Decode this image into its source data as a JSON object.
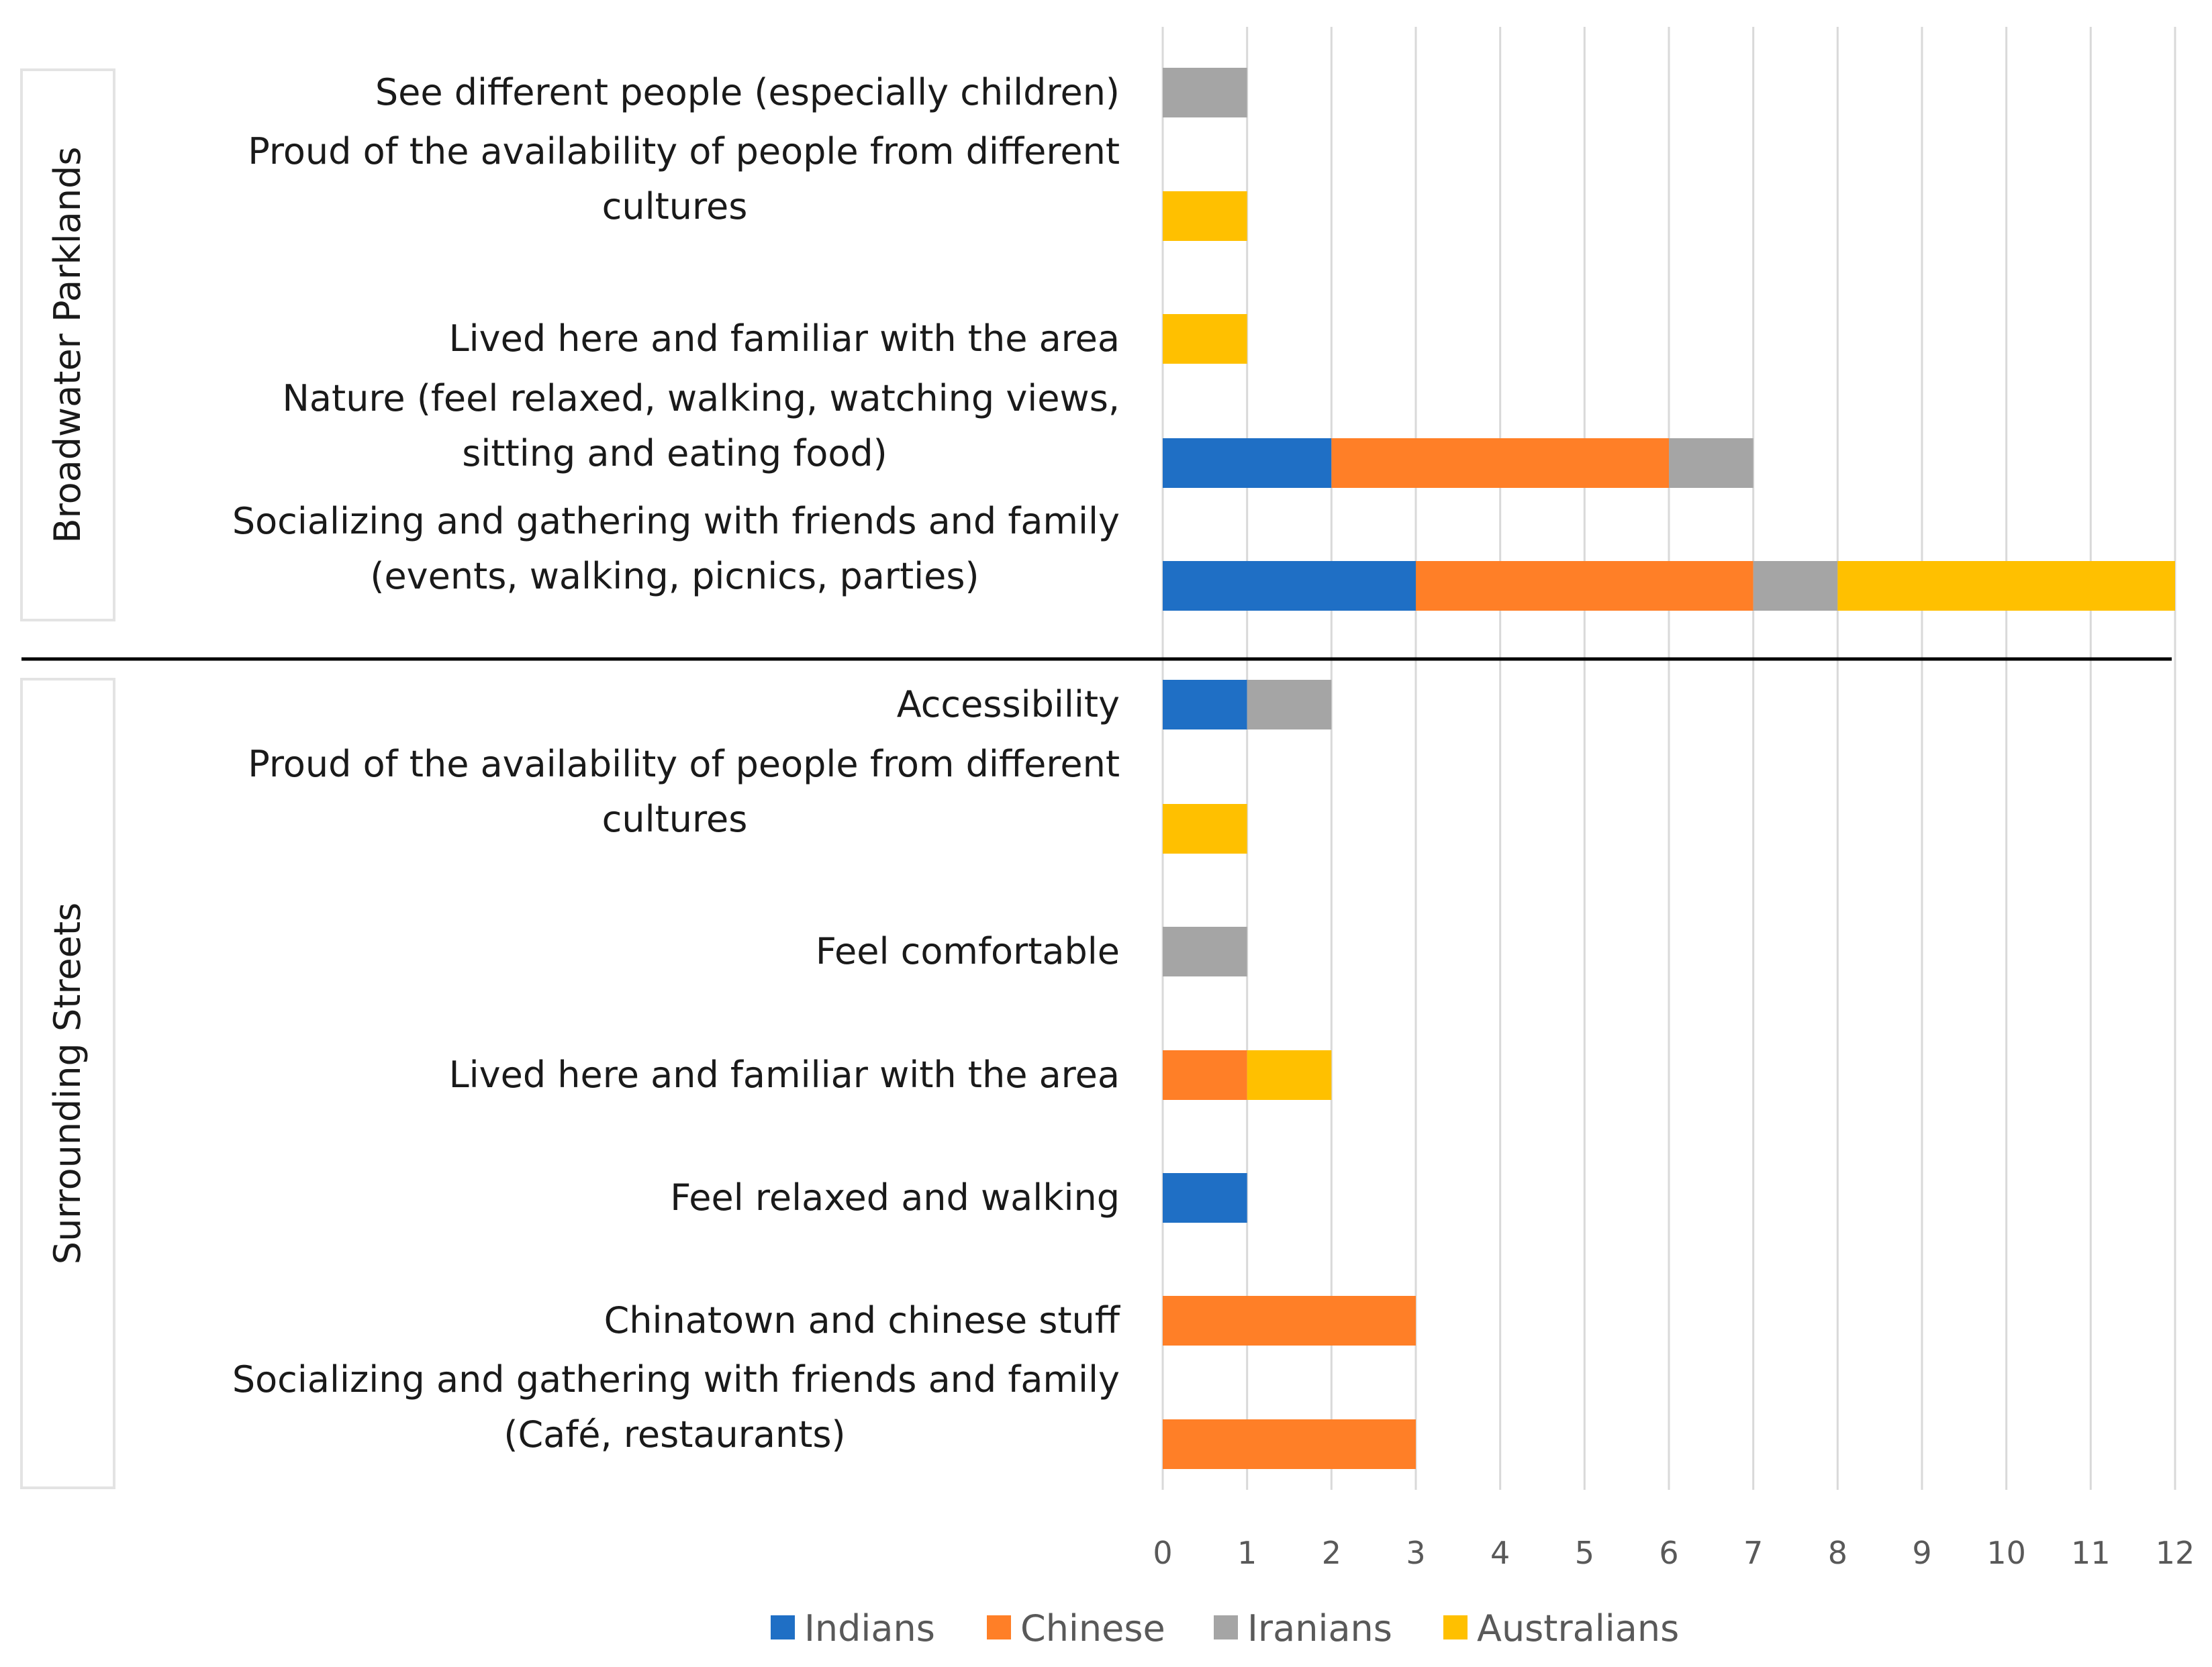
{
  "chart_data": {
    "type": "bar",
    "orientation": "horizontal",
    "stacked": true,
    "series_names": [
      "Indians",
      "Chinese",
      "Iranians",
      "Australians"
    ],
    "colors": {
      "Indians": "#1F6FC5",
      "Chinese": "#FF7F27",
      "Iranians": "#A5A5A5",
      "Australians": "#FFC000"
    },
    "groups": [
      {
        "label": "Broadwater Parklands",
        "categories": [
          {
            "label_lines": [
              "See different people (especially children)"
            ],
            "values": {
              "Indians": 0,
              "Chinese": 0,
              "Iranians": 1,
              "Australians": 0
            }
          },
          {
            "label_lines": [
              "Proud of the availability of people from different",
              "cultures"
            ],
            "values": {
              "Indians": 0,
              "Chinese": 0,
              "Iranians": 0,
              "Australians": 1
            }
          },
          {
            "label_lines": [
              "Lived here and familiar with the area"
            ],
            "values": {
              "Indians": 0,
              "Chinese": 0,
              "Iranians": 0,
              "Australians": 1
            }
          },
          {
            "label_lines": [
              "Nature (feel relaxed, walking, watching views,",
              "sitting and eating food)"
            ],
            "values": {
              "Indians": 2,
              "Chinese": 4,
              "Iranians": 1,
              "Australians": 0
            }
          },
          {
            "label_lines": [
              "Socializing and gathering with friends and family",
              "(events, walking, picnics, parties)"
            ],
            "values": {
              "Indians": 3,
              "Chinese": 4,
              "Iranians": 1,
              "Australians": 4
            }
          }
        ]
      },
      {
        "label": "Surrounding Streets",
        "categories": [
          {
            "label_lines": [
              "Accessibility"
            ],
            "values": {
              "Indians": 1,
              "Chinese": 0,
              "Iranians": 1,
              "Australians": 0
            }
          },
          {
            "label_lines": [
              "Proud of the availability of people from different",
              "cultures"
            ],
            "values": {
              "Indians": 0,
              "Chinese": 0,
              "Iranians": 0,
              "Australians": 1
            }
          },
          {
            "label_lines": [
              "Feel comfortable"
            ],
            "values": {
              "Indians": 0,
              "Chinese": 0,
              "Iranians": 1,
              "Australians": 0
            }
          },
          {
            "label_lines": [
              "Lived here and familiar with the area"
            ],
            "values": {
              "Indians": 0,
              "Chinese": 1,
              "Iranians": 0,
              "Australians": 1
            }
          },
          {
            "label_lines": [
              "Feel relaxed and walking"
            ],
            "values": {
              "Indians": 1,
              "Chinese": 0,
              "Iranians": 0,
              "Australians": 0
            }
          },
          {
            "label_lines": [
              "Chinatown and chinese stuff"
            ],
            "values": {
              "Indians": 0,
              "Chinese": 3,
              "Iranians": 0,
              "Australians": 0
            }
          },
          {
            "label_lines": [
              "Socializing and gathering with friends and family",
              "(Café, restaurants)"
            ],
            "values": {
              "Indians": 0,
              "Chinese": 3,
              "Iranians": 0,
              "Australians": 0
            }
          }
        ]
      }
    ],
    "xlim": [
      0,
      12
    ],
    "xticks": [
      "0",
      "1",
      "2",
      "3",
      "4",
      "5",
      "6",
      "7",
      "8",
      "9",
      "10",
      "11",
      "12"
    ],
    "grid": "vertical",
    "legend_position": "bottom"
  }
}
